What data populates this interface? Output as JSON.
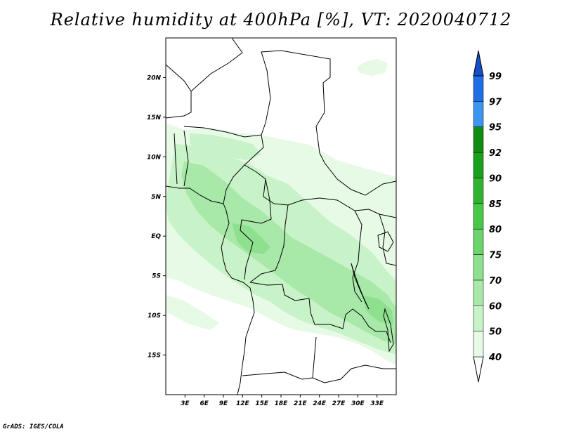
{
  "title": "Relative humidity at 400hPa [%], VT: 2020040712",
  "credit": "GrADS: IGES/COLA",
  "map": {
    "lon_range": [
      0,
      36
    ],
    "lat_range": [
      -20,
      25
    ],
    "lat_ticks": [
      {
        "value": 20,
        "label": "20N"
      },
      {
        "value": 15,
        "label": "15N"
      },
      {
        "value": 10,
        "label": "10N"
      },
      {
        "value": 5,
        "label": "5N"
      },
      {
        "value": 0,
        "label": "EQ"
      },
      {
        "value": -5,
        "label": "5S"
      },
      {
        "value": -10,
        "label": "10S"
      },
      {
        "value": -15,
        "label": "15S"
      }
    ],
    "lon_ticks": [
      {
        "value": 3,
        "label": "3E"
      },
      {
        "value": 6,
        "label": "6E"
      },
      {
        "value": 9,
        "label": "9E"
      },
      {
        "value": 12,
        "label": "12E"
      },
      {
        "value": 15,
        "label": "15E"
      },
      {
        "value": 18,
        "label": "18E"
      },
      {
        "value": 21,
        "label": "21E"
      },
      {
        "value": 24,
        "label": "24E"
      },
      {
        "value": 27,
        "label": "27E"
      },
      {
        "value": 30,
        "label": "30E"
      },
      {
        "value": 33,
        "label": "33E"
      }
    ]
  },
  "colorbar": {
    "levels": [
      "40",
      "50",
      "60",
      "70",
      "75",
      "80",
      "85",
      "90",
      "92",
      "95",
      "97",
      "99"
    ],
    "colors": [
      "#ffffff",
      "#e6fae6",
      "#c8f2c8",
      "#a8e8a8",
      "#8ee08e",
      "#6cd46c",
      "#48c848",
      "#30b430",
      "#1aa01a",
      "#128c12",
      "#3c96f0",
      "#1e6ee6",
      "#1450c8"
    ]
  }
}
